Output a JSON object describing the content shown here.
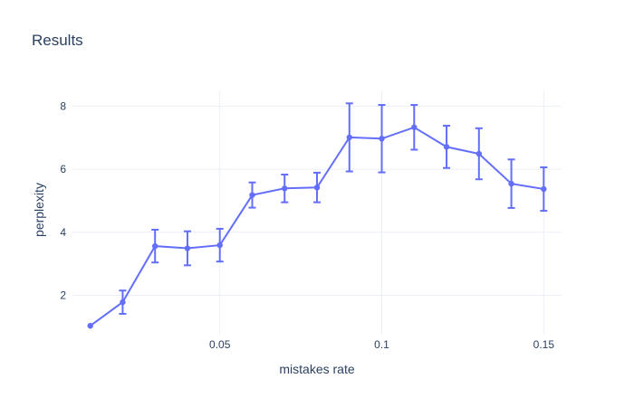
{
  "chart_data": {
    "type": "line",
    "title": "Results",
    "xlabel": "mistakes rate",
    "ylabel": "perplexity",
    "xlim": [
      0.0045,
      0.1555
    ],
    "ylim": [
      0.75,
      8.5
    ],
    "xticks": [
      0.05,
      0.1,
      0.15
    ],
    "xtick_labels": [
      "0.05",
      "0.1",
      "0.15"
    ],
    "yticks": [
      2,
      4,
      6,
      8
    ],
    "ytick_labels": [
      "2",
      "4",
      "6",
      "8"
    ],
    "grid": true,
    "series": [
      {
        "color": "#636efa",
        "x": [
          0.01,
          0.02,
          0.03,
          0.04,
          0.05,
          0.06,
          0.07,
          0.08,
          0.09,
          0.1,
          0.11,
          0.12,
          0.13,
          0.14,
          0.15
        ],
        "y": [
          1.03,
          1.78,
          3.56,
          3.49,
          3.59,
          5.18,
          5.39,
          5.42,
          7.01,
          6.97,
          7.33,
          6.71,
          6.49,
          5.54,
          5.37
        ],
        "error_plus": [
          0.0,
          0.37,
          0.52,
          0.54,
          0.52,
          0.4,
          0.44,
          0.47,
          1.08,
          1.07,
          0.71,
          0.67,
          0.81,
          0.77,
          0.69
        ],
        "error_minus": [
          0.0,
          0.37,
          0.52,
          0.54,
          0.52,
          0.4,
          0.44,
          0.47,
          1.08,
          1.07,
          0.71,
          0.67,
          0.81,
          0.77,
          0.69
        ]
      }
    ]
  }
}
